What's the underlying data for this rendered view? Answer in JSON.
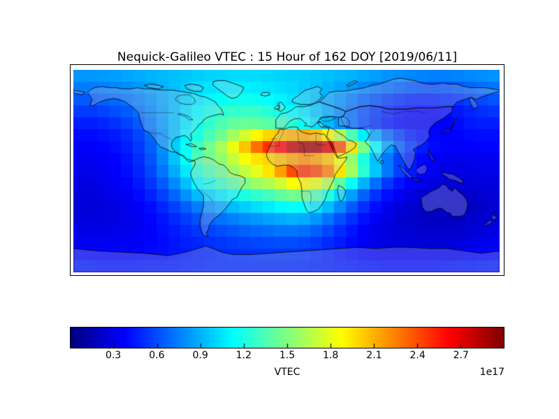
{
  "figure": {
    "title": "Nequick-Galileo VTEC : 15 Hour of 162 DOY [2019/06/11]",
    "background": "#ffffff"
  },
  "colorbar": {
    "label": "VTEC",
    "offset_label": "1e17",
    "colormap": "jet",
    "vmin": 0.0,
    "vmax": 3.0,
    "tick_values": [
      0.3,
      0.6,
      0.9,
      1.2,
      1.5,
      1.8,
      2.1,
      2.4,
      2.7
    ],
    "tick_labels": [
      "0.3",
      "0.6",
      "0.9",
      "1.2",
      "1.5",
      "1.8",
      "2.1",
      "2.4",
      "2.7"
    ],
    "edge_colors": {
      "low": "#00007f",
      "high": "#7f0000"
    }
  },
  "chart_data": {
    "type": "heatmap",
    "title": "Nequick-Galileo VTEC : 15 Hour of 162 DOY [2019/06/11]",
    "colorbar_label": "VTEC",
    "value_scale": "1e17",
    "colormap": "jet",
    "projection": "equirectangular world map with coastlines",
    "lon_range": [
      -180,
      180
    ],
    "lat_range": [
      -85,
      85
    ],
    "cell_size_deg": 10,
    "vmin": 0.0,
    "vmax": 3.0,
    "lat_row_centers": [
      80,
      70,
      60,
      50,
      40,
      30,
      20,
      10,
      0,
      -10,
      -20,
      -30,
      -40,
      -50,
      -60,
      -70,
      -80
    ],
    "lon_col_start": -180,
    "lon_col_step": 10,
    "values": [
      [
        0.82,
        0.82,
        0.83,
        0.84,
        0.86,
        0.88,
        0.9,
        0.92,
        0.94,
        0.96,
        0.98,
        1.0,
        1.01,
        1.02,
        1.02,
        1.02,
        1.01,
        1.0,
        0.99,
        0.98,
        0.96,
        0.94,
        0.92,
        0.9,
        0.87,
        0.84,
        0.81,
        0.79,
        0.77,
        0.76,
        0.75,
        0.75,
        0.76,
        0.78,
        0.79,
        0.81
      ],
      [
        0.74,
        0.74,
        0.75,
        0.77,
        0.79,
        0.82,
        0.86,
        0.9,
        0.94,
        0.98,
        1.02,
        1.05,
        1.07,
        1.08,
        1.08,
        1.07,
        1.05,
        1.03,
        1.01,
        0.98,
        0.95,
        0.91,
        0.87,
        0.83,
        0.78,
        0.74,
        0.7,
        0.66,
        0.63,
        0.62,
        0.61,
        0.62,
        0.64,
        0.67,
        0.7,
        0.72
      ],
      [
        0.64,
        0.64,
        0.66,
        0.68,
        0.71,
        0.76,
        0.81,
        0.87,
        0.93,
        1.0,
        1.06,
        1.11,
        1.15,
        1.17,
        1.17,
        1.16,
        1.13,
        1.09,
        1.05,
        1.0,
        0.94,
        0.88,
        0.81,
        0.74,
        0.67,
        0.61,
        0.55,
        0.51,
        0.48,
        0.47,
        0.47,
        0.49,
        0.52,
        0.56,
        0.59,
        0.62
      ],
      [
        0.55,
        0.55,
        0.57,
        0.6,
        0.64,
        0.7,
        0.77,
        0.85,
        0.94,
        1.03,
        1.12,
        1.19,
        1.25,
        1.28,
        1.29,
        1.28,
        1.24,
        1.19,
        1.12,
        1.05,
        0.97,
        0.88,
        0.79,
        0.7,
        0.61,
        0.53,
        0.47,
        0.42,
        0.39,
        0.38,
        0.38,
        0.4,
        0.44,
        0.48,
        0.51,
        0.53
      ],
      [
        0.46,
        0.46,
        0.48,
        0.52,
        0.57,
        0.64,
        0.73,
        0.83,
        0.94,
        1.06,
        1.17,
        1.27,
        1.35,
        1.41,
        1.43,
        1.42,
        1.38,
        1.32,
        1.24,
        1.14,
        1.03,
        0.92,
        0.81,
        0.7,
        0.6,
        0.51,
        0.44,
        0.39,
        0.35,
        0.34,
        0.34,
        0.36,
        0.4,
        0.44,
        0.46,
        0.46
      ],
      [
        0.4,
        0.4,
        0.42,
        0.45,
        0.5,
        0.58,
        0.68,
        0.8,
        0.95,
        1.1,
        1.22,
        1.34,
        1.46,
        1.6,
        1.75,
        1.9,
        2.0,
        2.06,
        2.1,
        2.12,
        2.06,
        1.9,
        1.65,
        1.35,
        1.08,
        0.86,
        0.68,
        0.55,
        0.46,
        0.41,
        0.38,
        0.37,
        0.38,
        0.4,
        0.41,
        0.41
      ],
      [
        0.36,
        0.36,
        0.38,
        0.41,
        0.46,
        0.54,
        0.65,
        0.8,
        0.98,
        1.15,
        1.3,
        1.46,
        1.62,
        1.82,
        2.05,
        2.3,
        2.48,
        2.62,
        2.8,
        2.9,
        2.88,
        2.7,
        2.4,
        1.95,
        1.48,
        1.12,
        0.85,
        0.66,
        0.53,
        0.45,
        0.4,
        0.37,
        0.36,
        0.37,
        0.38,
        0.38
      ],
      [
        0.33,
        0.33,
        0.35,
        0.38,
        0.43,
        0.51,
        0.62,
        0.77,
        0.95,
        1.15,
        1.35,
        1.46,
        1.55,
        1.7,
        1.85,
        1.95,
        2.0,
        2.06,
        2.15,
        2.2,
        2.15,
        2.05,
        1.85,
        1.55,
        1.22,
        0.95,
        0.73,
        0.57,
        0.46,
        0.39,
        0.35,
        0.32,
        0.31,
        0.32,
        0.33,
        0.33
      ],
      [
        0.31,
        0.31,
        0.33,
        0.36,
        0.41,
        0.48,
        0.58,
        0.72,
        0.88,
        1.06,
        1.25,
        1.36,
        1.45,
        1.58,
        1.7,
        1.8,
        1.95,
        2.15,
        2.4,
        2.48,
        2.42,
        2.25,
        1.95,
        1.6,
        1.25,
        0.96,
        0.73,
        0.56,
        0.45,
        0.38,
        0.33,
        0.3,
        0.29,
        0.3,
        0.31,
        0.31
      ],
      [
        0.29,
        0.29,
        0.31,
        0.34,
        0.38,
        0.44,
        0.53,
        0.64,
        0.78,
        0.94,
        1.1,
        1.2,
        1.3,
        1.4,
        1.5,
        1.58,
        1.64,
        1.73,
        1.85,
        1.9,
        1.82,
        1.65,
        1.4,
        1.15,
        0.9,
        0.7,
        0.54,
        0.43,
        0.36,
        0.31,
        0.28,
        0.26,
        0.25,
        0.26,
        0.27,
        0.28
      ],
      [
        0.27,
        0.27,
        0.29,
        0.31,
        0.35,
        0.4,
        0.47,
        0.56,
        0.67,
        0.8,
        0.92,
        1.0,
        1.07,
        1.14,
        1.21,
        1.27,
        1.32,
        1.4,
        1.46,
        1.45,
        1.36,
        1.22,
        1.02,
        0.84,
        0.66,
        0.52,
        0.41,
        0.34,
        0.29,
        0.25,
        0.23,
        0.21,
        0.21,
        0.22,
        0.24,
        0.25
      ],
      [
        0.27,
        0.26,
        0.27,
        0.29,
        0.32,
        0.36,
        0.41,
        0.48,
        0.56,
        0.65,
        0.74,
        0.81,
        0.87,
        0.93,
        0.98,
        1.03,
        1.07,
        1.12,
        1.15,
        1.13,
        1.05,
        0.93,
        0.78,
        0.64,
        0.51,
        0.41,
        0.33,
        0.28,
        0.24,
        0.22,
        0.2,
        0.19,
        0.19,
        0.2,
        0.22,
        0.24
      ],
      [
        0.28,
        0.28,
        0.28,
        0.29,
        0.31,
        0.34,
        0.38,
        0.43,
        0.49,
        0.55,
        0.61,
        0.66,
        0.71,
        0.75,
        0.79,
        0.82,
        0.85,
        0.88,
        0.9,
        0.88,
        0.82,
        0.72,
        0.61,
        0.51,
        0.42,
        0.35,
        0.29,
        0.25,
        0.23,
        0.21,
        0.2,
        0.2,
        0.2,
        0.22,
        0.24,
        0.26
      ],
      [
        0.31,
        0.3,
        0.3,
        0.31,
        0.32,
        0.34,
        0.37,
        0.41,
        0.45,
        0.49,
        0.53,
        0.57,
        0.6,
        0.63,
        0.66,
        0.68,
        0.7,
        0.72,
        0.72,
        0.7,
        0.65,
        0.58,
        0.5,
        0.43,
        0.36,
        0.31,
        0.28,
        0.25,
        0.24,
        0.23,
        0.22,
        0.22,
        0.23,
        0.25,
        0.27,
        0.29
      ],
      [
        0.35,
        0.34,
        0.34,
        0.34,
        0.35,
        0.36,
        0.38,
        0.4,
        0.43,
        0.46,
        0.48,
        0.51,
        0.53,
        0.55,
        0.57,
        0.58,
        0.59,
        0.6,
        0.6,
        0.58,
        0.55,
        0.5,
        0.45,
        0.4,
        0.35,
        0.32,
        0.29,
        0.28,
        0.27,
        0.26,
        0.26,
        0.27,
        0.28,
        0.3,
        0.32,
        0.33
      ],
      [
        0.4,
        0.39,
        0.38,
        0.38,
        0.38,
        0.39,
        0.4,
        0.41,
        0.43,
        0.45,
        0.47,
        0.48,
        0.5,
        0.51,
        0.52,
        0.53,
        0.53,
        0.53,
        0.53,
        0.52,
        0.5,
        0.47,
        0.44,
        0.41,
        0.38,
        0.36,
        0.34,
        0.33,
        0.33,
        0.33,
        0.33,
        0.34,
        0.35,
        0.37,
        0.38,
        0.39
      ],
      [
        0.46,
        0.45,
        0.44,
        0.44,
        0.44,
        0.44,
        0.45,
        0.45,
        0.46,
        0.47,
        0.48,
        0.49,
        0.49,
        0.5,
        0.5,
        0.5,
        0.5,
        0.5,
        0.5,
        0.49,
        0.48,
        0.47,
        0.46,
        0.45,
        0.44,
        0.43,
        0.42,
        0.42,
        0.42,
        0.42,
        0.42,
        0.43,
        0.44,
        0.44,
        0.45,
        0.46
      ]
    ]
  }
}
